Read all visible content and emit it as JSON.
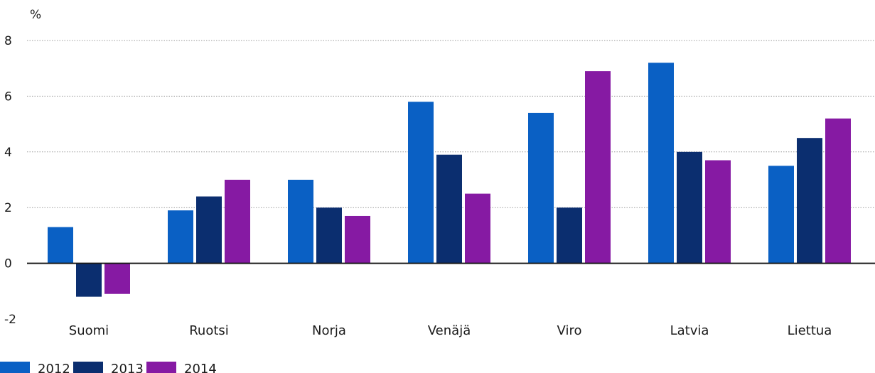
{
  "chart_data": {
    "type": "bar",
    "unit_label": "%",
    "categories": [
      "Suomi",
      "Ruotsi",
      "Norja",
      "Venäjä",
      "Viro",
      "Latvia",
      "Liettua"
    ],
    "series": [
      {
        "name": "2012",
        "color": "#0a60c4",
        "values": [
          1.3,
          1.9,
          3.0,
          5.8,
          5.4,
          7.2,
          3.5
        ]
      },
      {
        "name": "2013",
        "color": "#0b2e6f",
        "values": [
          -1.2,
          2.4,
          2.0,
          3.9,
          2.0,
          4.0,
          4.5
        ]
      },
      {
        "name": "2014",
        "color": "#861aa3",
        "values": [
          -1.1,
          3.0,
          1.7,
          2.5,
          6.9,
          3.7,
          5.2
        ]
      }
    ],
    "ylim": [
      -2,
      8
    ],
    "yticks": [
      "8",
      "6",
      "4",
      "2",
      "0",
      "-2"
    ],
    "grid": true,
    "legend_position": "bottom-left"
  }
}
